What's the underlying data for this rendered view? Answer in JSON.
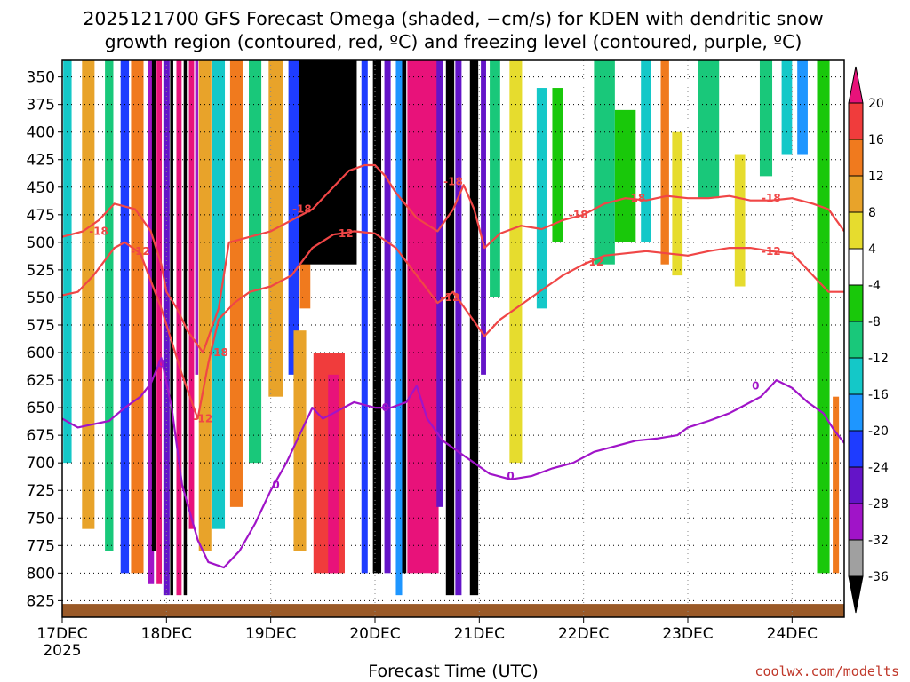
{
  "chart_data": {
    "type": "heatmap",
    "title_line1": "2025121700 GFS Forecast Omega (shaded, −cm/s) for KDEN with dendritic snow",
    "title_line2": "growth region (contoured, red, ºC) and freezing level (contoured, purple, ºC)",
    "xlabel": "Forecast Time (UTC)",
    "credit": "coolwx.com/modelts",
    "y_ticks": [
      "350",
      "375",
      "400",
      "425",
      "450",
      "475",
      "500",
      "525",
      "550",
      "575",
      "600",
      "625",
      "650",
      "675",
      "700",
      "725",
      "750",
      "775",
      "800",
      "825"
    ],
    "y_tick_values": [
      350,
      375,
      400,
      425,
      450,
      475,
      500,
      525,
      550,
      575,
      600,
      625,
      650,
      675,
      700,
      725,
      750,
      775,
      800,
      825
    ],
    "ylim": [
      335,
      840
    ],
    "x_ticks": [
      "17DEC",
      "18DEC",
      "19DEC",
      "20DEC",
      "21DEC",
      "22DEC",
      "23DEC",
      "24DEC"
    ],
    "x_year": "2025",
    "xlim_days": [
      0,
      7.5
    ],
    "colorbar": {
      "labels": [
        "20",
        "16",
        "12",
        "8",
        "4",
        "-4",
        "-8",
        "-12",
        "-16",
        "-20",
        "-24",
        "-28",
        "-32",
        "-36"
      ],
      "label_values": [
        20,
        16,
        12,
        8,
        4,
        -4,
        -8,
        -12,
        -16,
        -20,
        -24,
        -28,
        -32,
        -36
      ],
      "bands": [
        {
          "from": 20,
          "to": 24,
          "color": "#e8127a",
          "shape": "triangle"
        },
        {
          "from": 16,
          "to": 20,
          "color": "#f03c3c"
        },
        {
          "from": 12,
          "to": 16,
          "color": "#f07a1e"
        },
        {
          "from": 8,
          "to": 12,
          "color": "#e8a32a"
        },
        {
          "from": 4,
          "to": 8,
          "color": "#e6dc2e"
        },
        {
          "from": -4,
          "to": 4,
          "color": "#ffffff"
        },
        {
          "from": -8,
          "to": -4,
          "color": "#19c80a"
        },
        {
          "from": -12,
          "to": -8,
          "color": "#19c87a"
        },
        {
          "from": -16,
          "to": -12,
          "color": "#14c8c8"
        },
        {
          "from": -20,
          "to": -16,
          "color": "#1e96ff"
        },
        {
          "from": -24,
          "to": -20,
          "color": "#1e3cff"
        },
        {
          "from": -28,
          "to": -24,
          "color": "#6414c8"
        },
        {
          "from": -32,
          "to": -28,
          "color": "#a014c8"
        },
        {
          "from": -36,
          "to": -32,
          "color": "#a0a0a0"
        },
        {
          "from": -40,
          "to": -36,
          "color": "#000000",
          "shape": "triangle"
        }
      ]
    },
    "omega_columns": [
      {
        "t": 0.05,
        "w": 0.08,
        "p_top": 335,
        "p_bot": 700,
        "value": -14
      },
      {
        "t": 0.25,
        "w": 0.12,
        "p_top": 335,
        "p_bot": 760,
        "value": 10
      },
      {
        "t": 0.45,
        "w": 0.08,
        "p_top": 335,
        "p_bot": 780,
        "value": -10
      },
      {
        "t": 0.6,
        "w": 0.08,
        "p_top": 335,
        "p_bot": 800,
        "value": -22
      },
      {
        "t": 0.72,
        "w": 0.12,
        "p_top": 335,
        "p_bot": 800,
        "value": 14
      },
      {
        "t": 0.85,
        "w": 0.06,
        "p_top": 335,
        "p_bot": 810,
        "value": -30
      },
      {
        "t": 0.88,
        "w": 0.04,
        "p_top": 335,
        "p_bot": 780,
        "value": -40
      },
      {
        "t": 0.93,
        "w": 0.05,
        "p_top": 335,
        "p_bot": 810,
        "value": 22
      },
      {
        "t": 1.0,
        "w": 0.06,
        "p_top": 335,
        "p_bot": 820,
        "value": -26
      },
      {
        "t": 1.05,
        "w": 0.03,
        "p_top": 335,
        "p_bot": 820,
        "value": -40
      },
      {
        "t": 1.12,
        "w": 0.05,
        "p_top": 335,
        "p_bot": 820,
        "value": 22
      },
      {
        "t": 1.18,
        "w": 0.03,
        "p_top": 335,
        "p_bot": 820,
        "value": -40
      },
      {
        "t": 1.24,
        "w": 0.05,
        "p_top": 335,
        "p_bot": 760,
        "value": 22
      },
      {
        "t": 1.29,
        "w": 0.03,
        "p_top": 335,
        "p_bot": 620,
        "value": -30
      },
      {
        "t": 1.37,
        "w": 0.12,
        "p_top": 335,
        "p_bot": 780,
        "value": 10
      },
      {
        "t": 1.5,
        "w": 0.12,
        "p_top": 335,
        "p_bot": 760,
        "value": -14
      },
      {
        "t": 1.67,
        "w": 0.12,
        "p_top": 335,
        "p_bot": 740,
        "value": 14
      },
      {
        "t": 1.85,
        "w": 0.12,
        "p_top": 335,
        "p_bot": 700,
        "value": -12
      },
      {
        "t": 2.05,
        "w": 0.14,
        "p_top": 335,
        "p_bot": 640,
        "value": 8
      },
      {
        "t": 2.22,
        "w": 0.1,
        "p_top": 335,
        "p_bot": 620,
        "value": -24
      },
      {
        "t": 2.33,
        "w": 0.1,
        "p_top": 335,
        "p_bot": 560,
        "value": 12
      },
      {
        "t": 2.55,
        "w": 0.55,
        "p_top": 335,
        "p_bot": 520,
        "value": -40
      },
      {
        "t": 2.28,
        "w": 0.12,
        "p_top": 580,
        "p_bot": 780,
        "value": 10
      },
      {
        "t": 2.56,
        "w": 0.3,
        "p_top": 600,
        "p_bot": 800,
        "value": 16
      },
      {
        "t": 2.6,
        "w": 0.1,
        "p_top": 620,
        "p_bot": 800,
        "value": 22
      },
      {
        "t": 2.9,
        "w": 0.06,
        "p_top": 335,
        "p_bot": 800,
        "value": -24
      },
      {
        "t": 3.02,
        "w": 0.08,
        "p_top": 335,
        "p_bot": 800,
        "value": -40
      },
      {
        "t": 3.12,
        "w": 0.06,
        "p_top": 335,
        "p_bot": 800,
        "value": -26
      },
      {
        "t": 3.23,
        "w": 0.06,
        "p_top": 335,
        "p_bot": 820,
        "value": -18
      },
      {
        "t": 3.28,
        "w": 0.04,
        "p_top": 335,
        "p_bot": 800,
        "value": -40
      },
      {
        "t": 3.46,
        "w": 0.3,
        "p_top": 335,
        "p_bot": 800,
        "value": 22
      },
      {
        "t": 3.62,
        "w": 0.06,
        "p_top": 335,
        "p_bot": 740,
        "value": -28
      },
      {
        "t": 3.72,
        "w": 0.08,
        "p_top": 335,
        "p_bot": 820,
        "value": -40
      },
      {
        "t": 3.8,
        "w": 0.06,
        "p_top": 335,
        "p_bot": 820,
        "value": -26
      },
      {
        "t": 3.95,
        "w": 0.08,
        "p_top": 335,
        "p_bot": 820,
        "value": -40
      },
      {
        "t": 4.04,
        "w": 0.05,
        "p_top": 335,
        "p_bot": 620,
        "value": -26
      },
      {
        "t": 4.15,
        "w": 0.1,
        "p_top": 335,
        "p_bot": 550,
        "value": -12
      },
      {
        "t": 4.35,
        "w": 0.12,
        "p_top": 335,
        "p_bot": 700,
        "value": 6
      },
      {
        "t": 4.6,
        "w": 0.1,
        "p_top": 360,
        "p_bot": 560,
        "value": -14
      },
      {
        "t": 4.75,
        "w": 0.1,
        "p_top": 360,
        "p_bot": 500,
        "value": -6
      },
      {
        "t": 5.2,
        "w": 0.2,
        "p_top": 335,
        "p_bot": 520,
        "value": -10
      },
      {
        "t": 5.4,
        "w": 0.2,
        "p_top": 380,
        "p_bot": 500,
        "value": -6
      },
      {
        "t": 5.6,
        "w": 0.1,
        "p_top": 335,
        "p_bot": 500,
        "value": -16
      },
      {
        "t": 5.78,
        "w": 0.08,
        "p_top": 335,
        "p_bot": 520,
        "value": 14
      },
      {
        "t": 5.9,
        "w": 0.1,
        "p_top": 400,
        "p_bot": 530,
        "value": 6
      },
      {
        "t": 6.2,
        "w": 0.2,
        "p_top": 335,
        "p_bot": 460,
        "value": -10
      },
      {
        "t": 6.5,
        "w": 0.1,
        "p_top": 420,
        "p_bot": 540,
        "value": 6
      },
      {
        "t": 6.75,
        "w": 0.12,
        "p_top": 335,
        "p_bot": 440,
        "value": -12
      },
      {
        "t": 6.95,
        "w": 0.1,
        "p_top": 335,
        "p_bot": 420,
        "value": -14
      },
      {
        "t": 7.1,
        "w": 0.1,
        "p_top": 335,
        "p_bot": 420,
        "value": -18
      },
      {
        "t": 7.3,
        "w": 0.12,
        "p_top": 335,
        "p_bot": 800,
        "value": -8
      },
      {
        "t": 7.42,
        "w": 0.06,
        "p_top": 640,
        "p_bot": 800,
        "value": 14
      }
    ],
    "terrain": {
      "color": "#9a5a28",
      "p_surface": 828
    },
    "contours": [
      {
        "name": "-18C",
        "label": "-18",
        "color": "#f04646",
        "points": [
          [
            0,
            495
          ],
          [
            0.2,
            490
          ],
          [
            0.35,
            480
          ],
          [
            0.5,
            465
          ],
          [
            0.7,
            470
          ],
          [
            0.85,
            490
          ],
          [
            0.95,
            520
          ],
          [
            1.0,
            545
          ],
          [
            1.1,
            560
          ],
          [
            1.2,
            580
          ],
          [
            1.35,
            600
          ],
          [
            1.5,
            560
          ],
          [
            1.6,
            500
          ],
          [
            1.8,
            495
          ],
          [
            2.0,
            490
          ],
          [
            2.2,
            480
          ],
          [
            2.4,
            470
          ],
          [
            2.6,
            450
          ],
          [
            2.75,
            435
          ],
          [
            2.9,
            430
          ],
          [
            3.0,
            430
          ],
          [
            3.1,
            440
          ],
          [
            3.2,
            455
          ],
          [
            3.4,
            478
          ],
          [
            3.6,
            490
          ],
          [
            3.75,
            470
          ],
          [
            3.85,
            448
          ],
          [
            3.95,
            470
          ],
          [
            4.05,
            505
          ],
          [
            4.2,
            492
          ],
          [
            4.4,
            485
          ],
          [
            4.6,
            488
          ],
          [
            4.8,
            480
          ],
          [
            5.0,
            475
          ],
          [
            5.2,
            465
          ],
          [
            5.4,
            460
          ],
          [
            5.6,
            462
          ],
          [
            5.8,
            458
          ],
          [
            6.0,
            460
          ],
          [
            6.2,
            460
          ],
          [
            6.4,
            458
          ],
          [
            6.6,
            462
          ],
          [
            6.8,
            462
          ],
          [
            7.0,
            460
          ],
          [
            7.2,
            465
          ],
          [
            7.35,
            470
          ],
          [
            7.5,
            490
          ]
        ],
        "label_positions": [
          [
            0.35,
            490
          ],
          [
            2.3,
            470
          ],
          [
            3.75,
            445
          ],
          [
            4.95,
            475
          ],
          [
            5.5,
            460
          ],
          [
            6.8,
            460
          ],
          [
            1.5,
            600
          ]
        ]
      },
      {
        "name": "-12C",
        "label": "-12",
        "color": "#f04646",
        "points": [
          [
            0,
            548
          ],
          [
            0.15,
            545
          ],
          [
            0.3,
            530
          ],
          [
            0.5,
            505
          ],
          [
            0.6,
            500
          ],
          [
            0.75,
            510
          ],
          [
            0.85,
            535
          ],
          [
            0.95,
            560
          ],
          [
            1.05,
            590
          ],
          [
            1.15,
            620
          ],
          [
            1.3,
            660
          ],
          [
            1.4,
            610
          ],
          [
            1.5,
            570
          ],
          [
            1.65,
            555
          ],
          [
            1.8,
            545
          ],
          [
            2.0,
            540
          ],
          [
            2.2,
            530
          ],
          [
            2.4,
            505
          ],
          [
            2.6,
            493
          ],
          [
            2.8,
            490
          ],
          [
            3.0,
            492
          ],
          [
            3.2,
            505
          ],
          [
            3.4,
            530
          ],
          [
            3.6,
            555
          ],
          [
            3.75,
            545
          ],
          [
            3.9,
            565
          ],
          [
            4.05,
            585
          ],
          [
            4.2,
            570
          ],
          [
            4.35,
            560
          ],
          [
            4.5,
            550
          ],
          [
            4.65,
            540
          ],
          [
            4.8,
            530
          ],
          [
            5.0,
            520
          ],
          [
            5.2,
            512
          ],
          [
            5.4,
            510
          ],
          [
            5.6,
            508
          ],
          [
            5.8,
            510
          ],
          [
            6.0,
            512
          ],
          [
            6.2,
            508
          ],
          [
            6.4,
            505
          ],
          [
            6.6,
            505
          ],
          [
            6.8,
            508
          ],
          [
            7.0,
            510
          ],
          [
            7.2,
            530
          ],
          [
            7.35,
            545
          ],
          [
            7.5,
            545
          ]
        ],
        "label_positions": [
          [
            0.75,
            508
          ],
          [
            2.7,
            492
          ],
          [
            3.72,
            550
          ],
          [
            5.1,
            518
          ],
          [
            6.8,
            508
          ],
          [
            1.35,
            660
          ]
        ]
      },
      {
        "name": "0C",
        "label": "0",
        "color": "#a014c8",
        "points": [
          [
            0,
            660
          ],
          [
            0.15,
            668
          ],
          [
            0.3,
            665
          ],
          [
            0.45,
            662
          ],
          [
            0.6,
            650
          ],
          [
            0.75,
            640
          ],
          [
            0.85,
            628
          ],
          [
            0.95,
            605
          ],
          [
            1.05,
            650
          ],
          [
            1.15,
            720
          ],
          [
            1.3,
            770
          ],
          [
            1.4,
            790
          ],
          [
            1.55,
            795
          ],
          [
            1.7,
            780
          ],
          [
            1.85,
            755
          ],
          [
            2.0,
            725
          ],
          [
            2.15,
            700
          ],
          [
            2.25,
            680
          ],
          [
            2.4,
            650
          ],
          [
            2.5,
            660
          ],
          [
            2.6,
            655
          ],
          [
            2.8,
            645
          ],
          [
            3.0,
            650
          ],
          [
            3.15,
            650
          ],
          [
            3.3,
            645
          ],
          [
            3.4,
            630
          ],
          [
            3.5,
            660
          ],
          [
            3.65,
            680
          ],
          [
            3.8,
            690
          ],
          [
            3.95,
            700
          ],
          [
            4.1,
            710
          ],
          [
            4.3,
            715
          ],
          [
            4.5,
            712
          ],
          [
            4.7,
            705
          ],
          [
            4.9,
            700
          ],
          [
            5.1,
            690
          ],
          [
            5.3,
            685
          ],
          [
            5.5,
            680
          ],
          [
            5.7,
            678
          ],
          [
            5.9,
            675
          ],
          [
            6.0,
            668
          ],
          [
            6.2,
            662
          ],
          [
            6.4,
            655
          ],
          [
            6.5,
            650
          ],
          [
            6.7,
            640
          ],
          [
            6.85,
            625
          ],
          [
            7.0,
            632
          ],
          [
            7.15,
            645
          ],
          [
            7.3,
            655
          ],
          [
            7.4,
            670
          ],
          [
            7.5,
            682
          ]
        ],
        "label_positions": [
          [
            0.95,
            610
          ],
          [
            2.05,
            720
          ],
          [
            3.1,
            650
          ],
          [
            4.3,
            712
          ],
          [
            6.65,
            630
          ]
        ]
      }
    ]
  }
}
